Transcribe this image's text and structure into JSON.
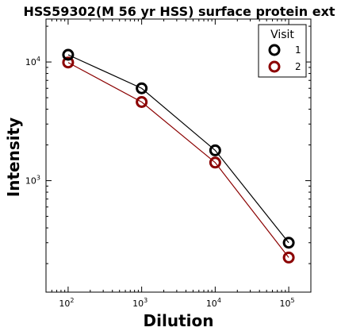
{
  "chart_data": {
    "type": "line",
    "title": "HSS59302(M 56 yr HSS) surface protein ext",
    "xlabel": "Dilution",
    "ylabel": "Intensity",
    "x_scale": "log",
    "y_scale": "log",
    "xlim": [
      50,
      200000
    ],
    "ylim": [
      115,
      23000
    ],
    "x_ticks": [
      {
        "value": 100,
        "base": "10",
        "exp": "2"
      },
      {
        "value": 1000,
        "base": "10",
        "exp": "3"
      },
      {
        "value": 10000,
        "base": "10",
        "exp": "4"
      },
      {
        "value": 100000,
        "base": "10",
        "exp": "5"
      }
    ],
    "y_ticks": [
      {
        "value": 1000,
        "base": "10",
        "exp": "3"
      },
      {
        "value": 10000,
        "base": "10",
        "exp": "4"
      }
    ],
    "legend": {
      "title": "Visit",
      "position": "top-right"
    },
    "grid": false,
    "x": [
      100,
      1000,
      10000,
      100000
    ],
    "series": [
      {
        "name": "1",
        "color": "#000000",
        "values": [
          11500,
          6000,
          1800,
          300
        ]
      },
      {
        "name": "2",
        "color": "#8b0000",
        "values": [
          9900,
          4600,
          1420,
          225
        ]
      }
    ]
  }
}
